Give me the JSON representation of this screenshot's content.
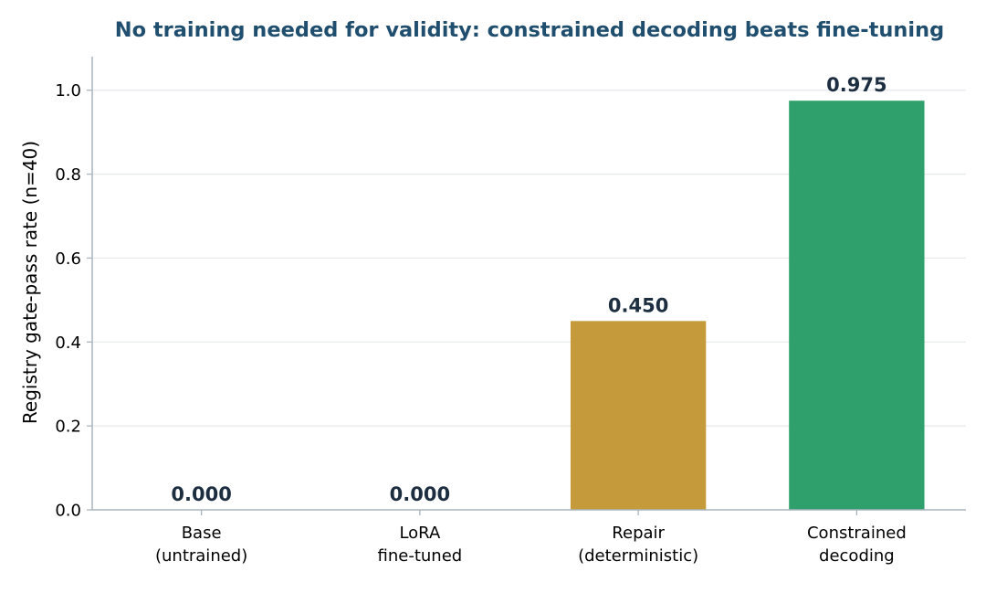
{
  "chart_data": {
    "type": "bar",
    "title": "No training needed for validity: constrained decoding beats fine-tuning",
    "xlabel": "",
    "ylabel": "Registry gate-pass rate (n=40)",
    "categories": [
      [
        "Base",
        "(untrained)"
      ],
      [
        "LoRA",
        "fine-tuned"
      ],
      [
        "Repair",
        "(deterministic)"
      ],
      [
        "Constrained",
        "decoding"
      ]
    ],
    "values": [
      0.0,
      0.0,
      0.45,
      0.975
    ],
    "value_labels": [
      "0.000",
      "0.000",
      "0.450",
      "0.975"
    ],
    "bar_colors": [
      "#c49a3a",
      "#c49a3a",
      "#c49a3a",
      "#2fa06c"
    ],
    "ylim": [
      0,
      1.08
    ],
    "yticks": [
      0.0,
      0.2,
      0.4,
      0.6,
      0.8,
      1.0
    ],
    "ytick_labels": [
      "0.0",
      "0.2",
      "0.4",
      "0.6",
      "0.8",
      "1.0"
    ],
    "grid": "horizontal",
    "colors": {
      "title": "#1f4e6e",
      "value_label": "#1c2e3f",
      "axis": "#a9b4bd",
      "grid": "#e6e9ec",
      "text": "#000000"
    }
  }
}
